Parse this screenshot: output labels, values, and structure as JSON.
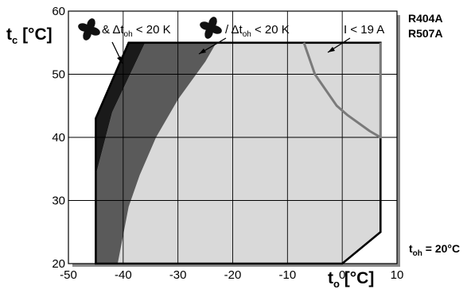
{
  "chart_data": {
    "type": "area",
    "xlabel": {
      "main": "t",
      "sub": "o",
      "unit": " [°C]"
    },
    "ylabel": {
      "main": "t",
      "sub": "c",
      "unit": " [°C]"
    },
    "xlim": [
      -50,
      10
    ],
    "ylim": [
      20,
      60
    ],
    "xticks": [
      -50,
      -40,
      -30,
      -20,
      -10,
      0,
      10
    ],
    "yticks": [
      20,
      30,
      40,
      50,
      60
    ],
    "x_tick_labels": [
      "-50",
      "-40",
      "-30",
      "-20",
      "-10",
      "0",
      "10"
    ],
    "y_tick_labels": [
      "20",
      "30",
      "40",
      "50",
      "60"
    ],
    "grid": true,
    "refrigerants": [
      "R404A",
      "R507A"
    ],
    "condition": {
      "main": "t",
      "sub": "oh",
      "suffix": " = 20°C"
    },
    "envelope": [
      [
        -45,
        20
      ],
      [
        -45,
        43
      ],
      [
        -39,
        55
      ],
      [
        -7,
        55
      ],
      [
        7,
        55
      ],
      [
        7,
        25
      ],
      [
        0,
        20
      ]
    ],
    "regions": [
      {
        "id": "fan-and-superheat",
        "color": "#1a1a1a",
        "boundary": [
          [
            -45,
            20
          ],
          [
            -45,
            43
          ],
          [
            -39,
            55
          ],
          [
            -36,
            55
          ],
          [
            -42,
            44
          ],
          [
            -45,
            34
          ],
          [
            -45,
            20
          ]
        ]
      },
      {
        "id": "fan-or-superheat",
        "color": "#5a5a5a",
        "boundary": [
          [
            -45,
            34
          ],
          [
            -42,
            44
          ],
          [
            -36,
            55
          ],
          [
            -23,
            55
          ],
          [
            -25,
            52
          ],
          [
            -30,
            46
          ],
          [
            -34,
            40
          ],
          [
            -37,
            34
          ],
          [
            -39,
            29
          ],
          [
            -41,
            20
          ],
          [
            -45,
            20
          ]
        ]
      }
    ],
    "current_limit": {
      "color": "#7a7a7a",
      "points": [
        [
          -7,
          55
        ],
        [
          -5,
          50
        ],
        [
          -1,
          45
        ],
        [
          1,
          43.5
        ],
        [
          5,
          41
        ],
        [
          7,
          40
        ],
        [
          7,
          55
        ]
      ]
    },
    "annotations": [
      {
        "id": "fan-amp",
        "parts": [
          "& Δt",
          "oh",
          " < 20 K"
        ],
        "icon": "fan-icon"
      },
      {
        "id": "fan-slash",
        "parts": [
          "/ Δt",
          "oh",
          " < 20 K"
        ],
        "icon": "fan-icon"
      },
      {
        "id": "current",
        "parts": [
          "I < 19 A"
        ]
      }
    ],
    "colors": {
      "envelope_fill": "#d9d9d9",
      "grid": "#000000",
      "plot_bg": "#ffffff",
      "frame_shadow": "#8a8a8a"
    }
  }
}
